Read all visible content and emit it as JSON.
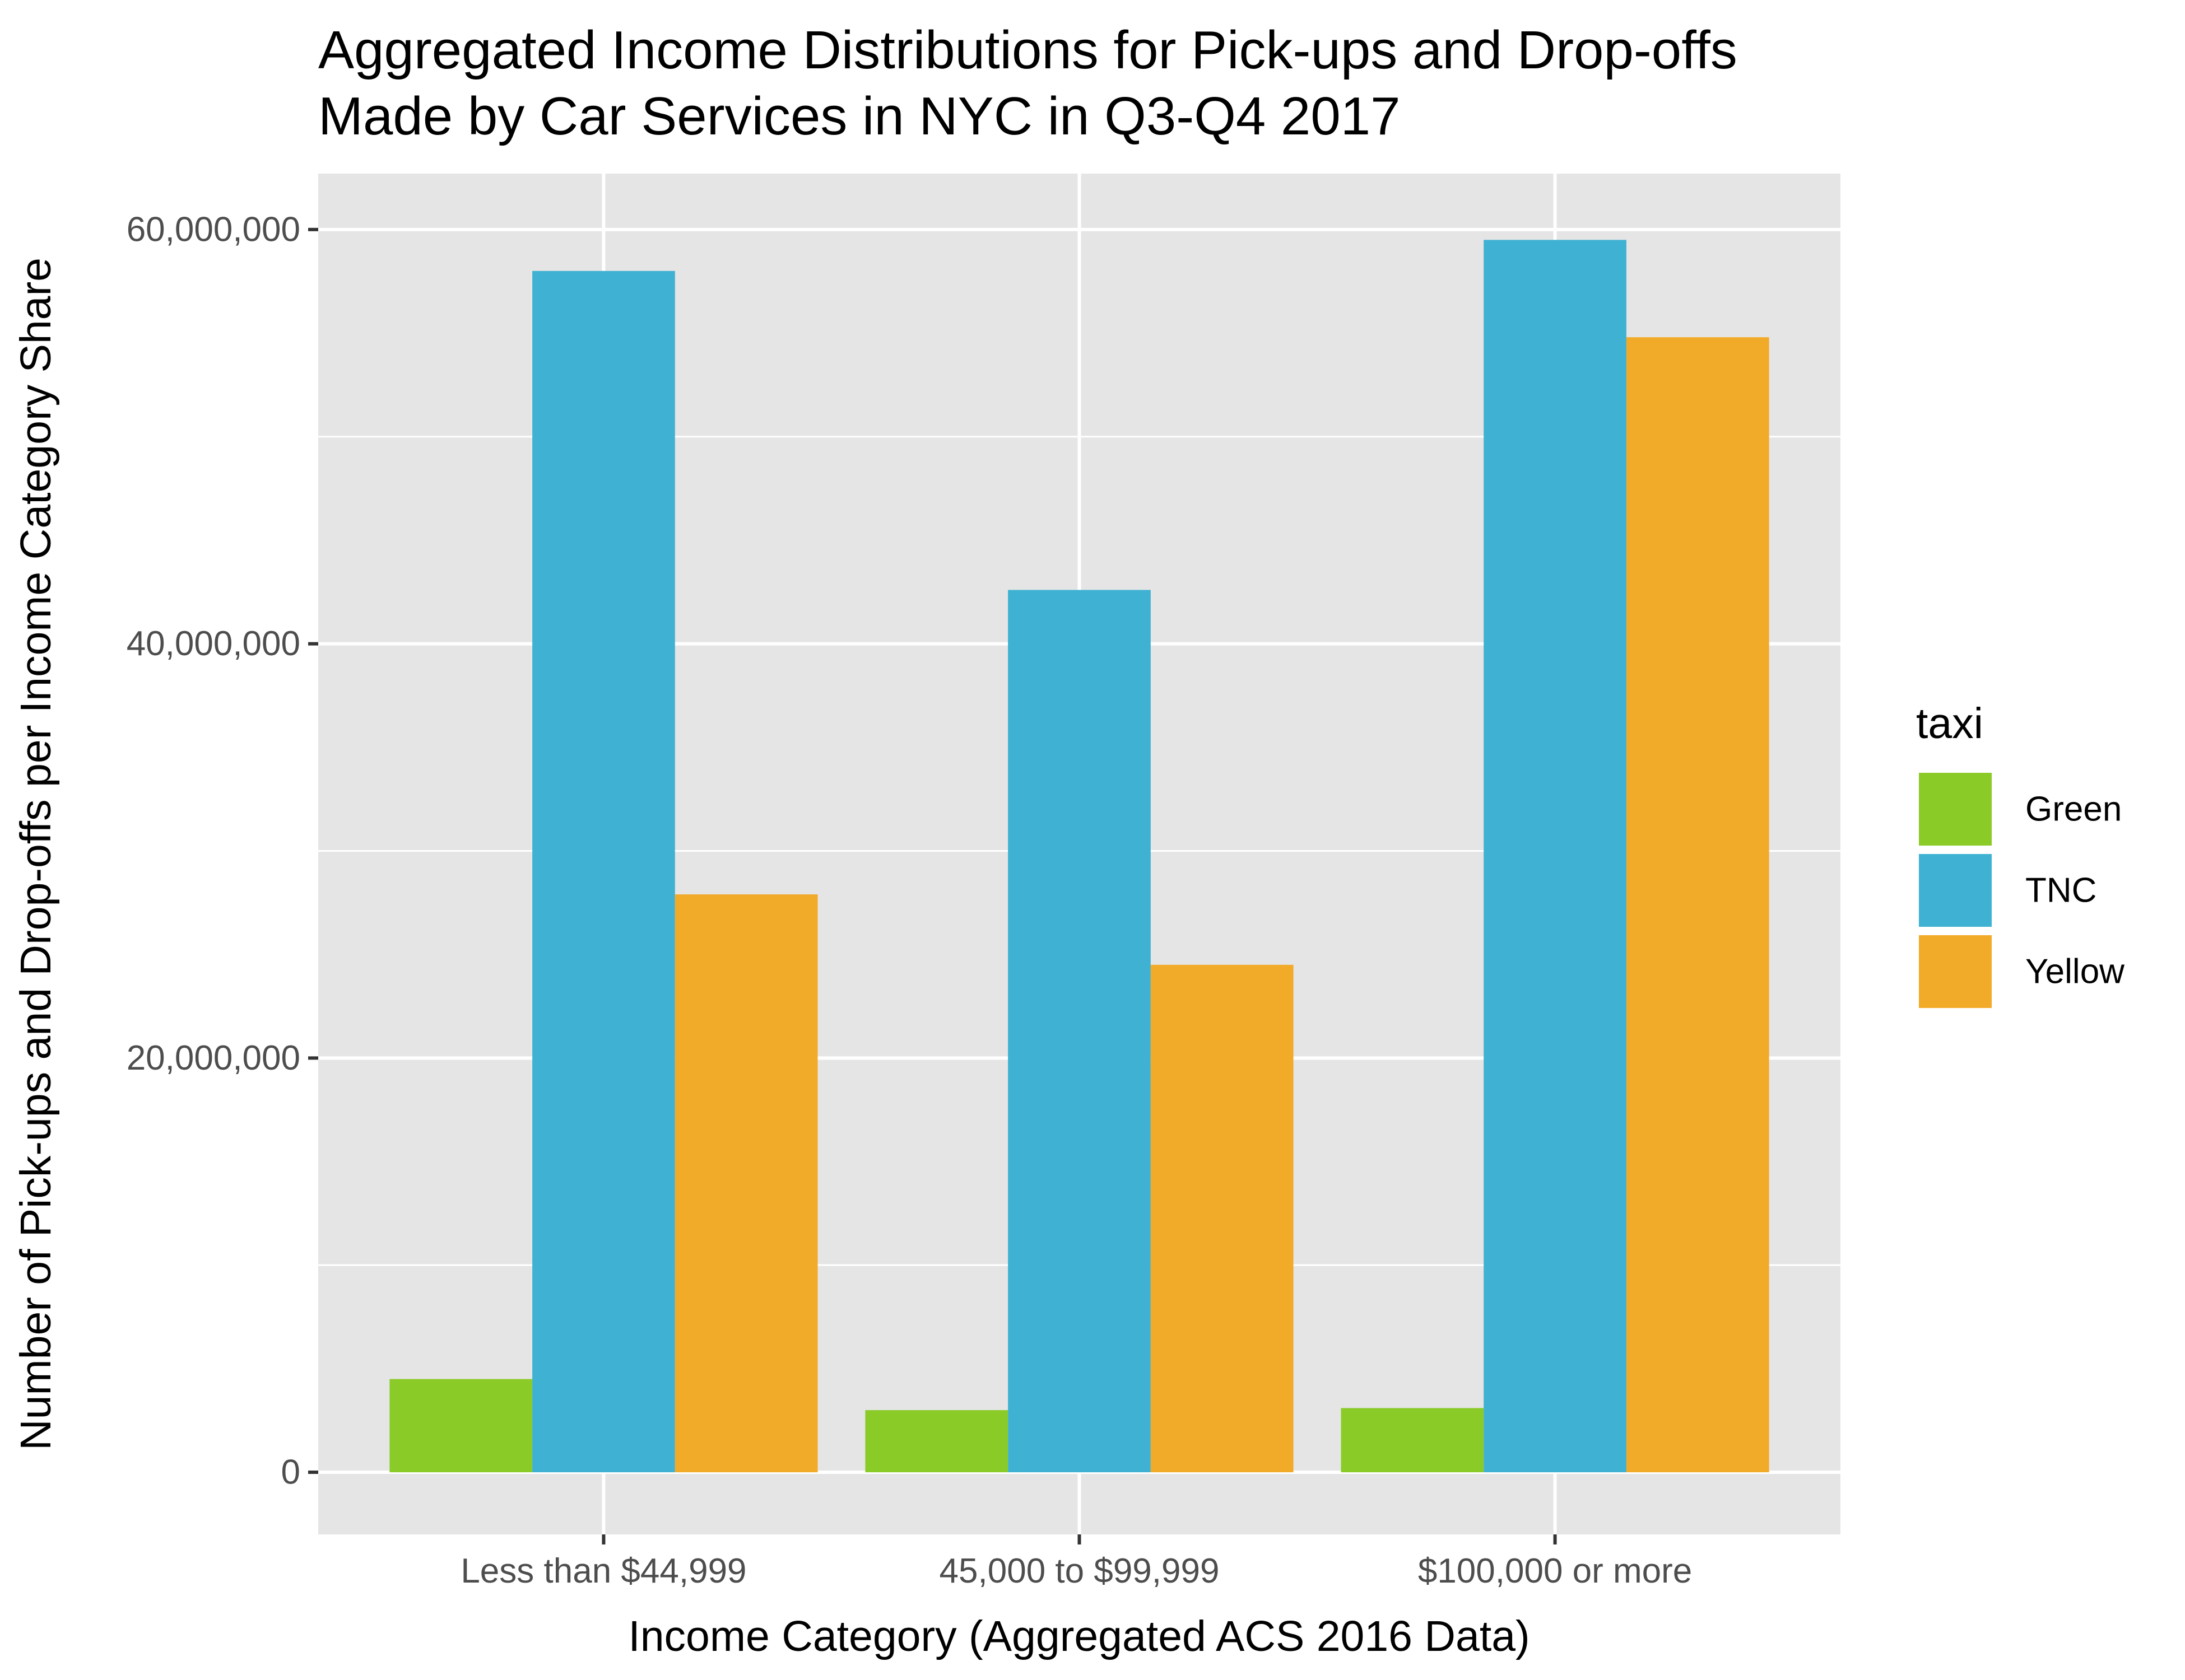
{
  "chart_data": {
    "type": "bar",
    "title": [
      "Aggregated Income Distributions for Pick-ups and Drop-offs",
      "Made by Car Services in NYC in Q3-Q4 2017"
    ],
    "xlabel": "Income Category (Aggregated ACS 2016 Data)",
    "ylabel": "Number of Pick-ups and Drop-offs per Income Category Share",
    "categories": [
      "Less than $44,999",
      "45,000 to $99,999",
      "$100,000 or more"
    ],
    "series": [
      {
        "name": "Green",
        "color": "#8ACB28",
        "values": [
          4500000,
          3000000,
          3100000
        ]
      },
      {
        "name": "TNC",
        "color": "#3FB2D3",
        "values": [
          58000000,
          42600000,
          59500000
        ]
      },
      {
        "name": "Yellow",
        "color": "#F2AA29",
        "values": [
          27900000,
          24500000,
          54800000
        ]
      }
    ],
    "ylim": [
      -3000000,
      62700000
    ],
    "yticks": [
      0,
      20000000,
      40000000,
      60000000
    ],
    "ytick_labels": [
      "0",
      "20,000,000",
      "40,000,000",
      "60,000,000"
    ],
    "grid": true,
    "background": "#E5E5E5",
    "legend": {
      "title": "taxi",
      "position": "right",
      "items": [
        "Green",
        "TNC",
        "Yellow"
      ]
    }
  }
}
